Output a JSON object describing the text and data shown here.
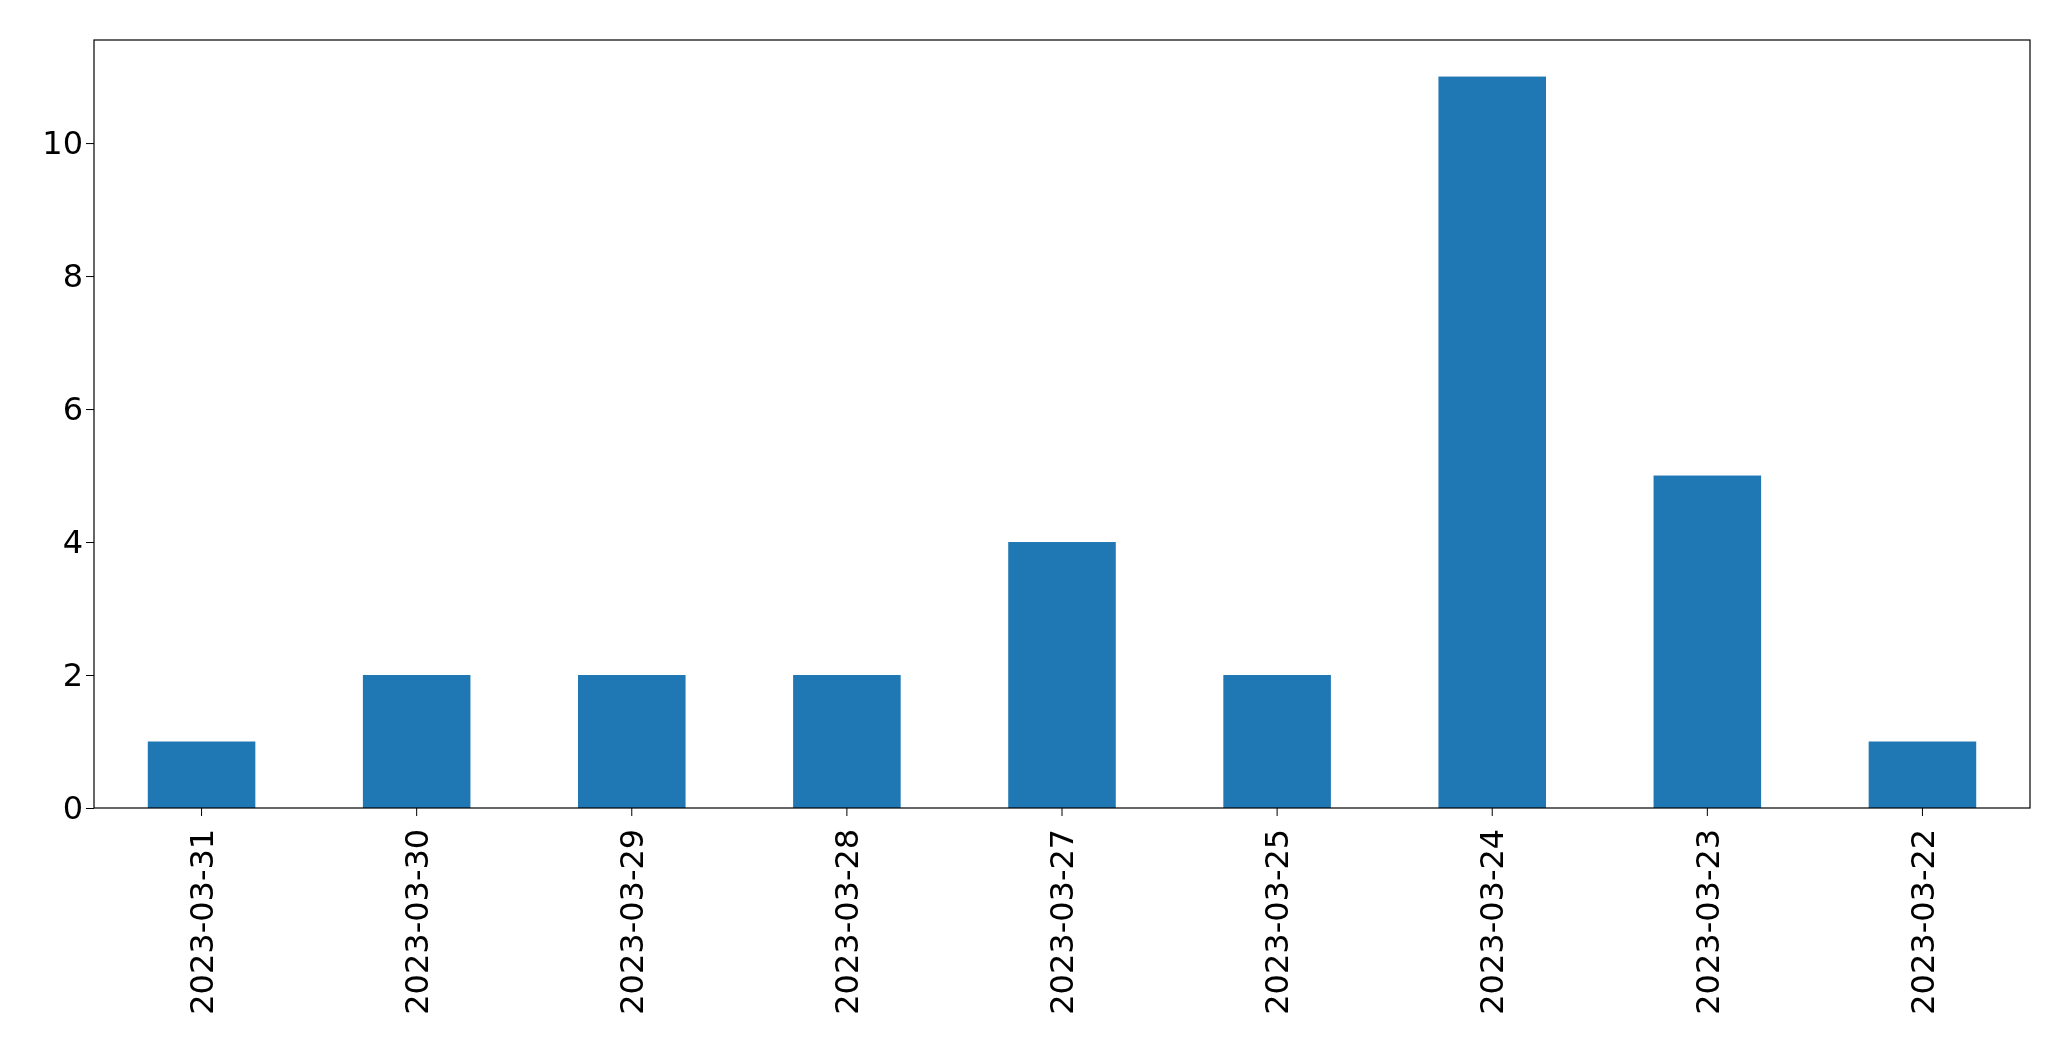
{
  "chart_data": {
    "type": "bar",
    "categories": [
      "2023-03-31",
      "2023-03-30",
      "2023-03-29",
      "2023-03-28",
      "2023-03-27",
      "2023-03-25",
      "2023-03-24",
      "2023-03-23",
      "2023-03-22"
    ],
    "values": [
      1,
      2,
      2,
      2,
      4,
      2,
      11,
      5,
      1
    ],
    "color": "#1f77b4",
    "ylim": [
      0,
      11.55
    ],
    "yticks": [
      0,
      2,
      4,
      6,
      8,
      10
    ]
  }
}
